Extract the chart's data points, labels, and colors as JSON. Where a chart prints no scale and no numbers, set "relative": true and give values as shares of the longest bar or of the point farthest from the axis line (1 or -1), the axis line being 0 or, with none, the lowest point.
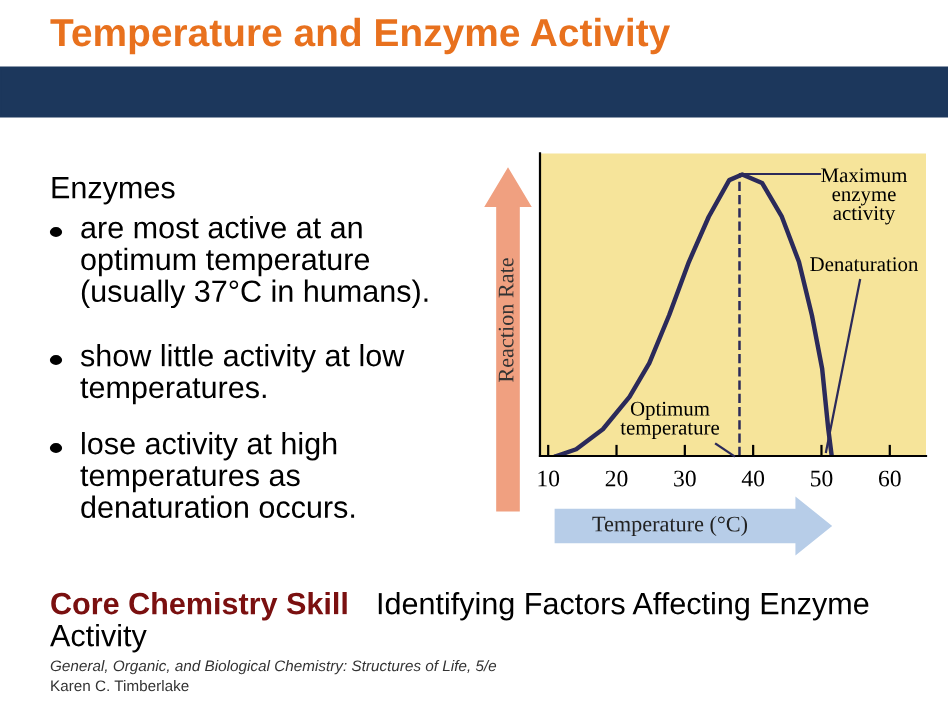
{
  "chart_data": {
    "type": "line",
    "title": "Temperature and Enzyme Activity",
    "xlabel": "Temperature (°C)",
    "ylabel": "Reaction Rate",
    "relative": true,
    "x": [
      11.2,
      14.1,
      18,
      21.9,
      24.8,
      27.7,
      30.6,
      33.5,
      36.5,
      38.4,
      41.3,
      44.2,
      46.7,
      48.6,
      50.1,
      51,
      51.5
    ],
    "series": [
      {
        "color": "#2b2a5a",
        "values": [
          0,
          0.024,
          0.095,
          0.21,
          0.33,
          0.5,
          0.69,
          0.85,
          0.98,
          1.0,
          0.97,
          0.85,
          0.69,
          0.5,
          0.31,
          0.095,
          0
        ]
      }
    ],
    "xlim": [
      8.8,
      65.3
    ],
    "xticks": [
      10,
      20,
      30,
      40,
      50,
      60
    ],
    "ref_lines": [
      {
        "axis": "x",
        "value": 38,
        "line_style": "dashed",
        "color": "#2b2a5a"
      }
    ],
    "annotations": [
      "Enzymes",
      "are most active at an optimum temperature (usually 37°C in humans).",
      "show little activity at low temperatures.",
      "lose activity at high temperatures as denaturation occurs.",
      "Core Chemistry Skill",
      "Identifying Factors Affecting Enzyme Activity",
      "General, Organic, and Biological Chemistry: Structures of Life, 5/e",
      "Karen C. Timberlake",
      "Maximum\nenzyme\nactivity",
      "Denaturation",
      "Optimum\ntemperature"
    ],
    "grid": false,
    "legend": false,
    "marker": "none",
    "line_style": "solid"
  }
}
